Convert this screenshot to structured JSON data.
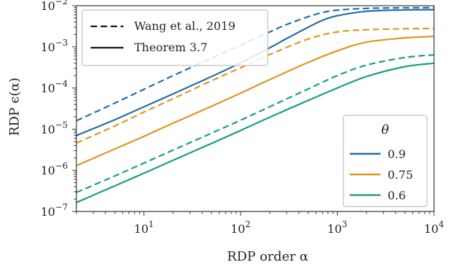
{
  "chart_data": {
    "type": "line",
    "xlabel": "RDP order α",
    "ylabel": "RDP ϵ(α)",
    "xscale": "log",
    "yscale": "log",
    "xlim": [
      2,
      10000
    ],
    "ylim": [
      1e-07,
      0.01
    ],
    "grid": false,
    "x_ticks": [
      {
        "value": 10,
        "base": "10",
        "exp": "1"
      },
      {
        "value": 100,
        "base": "10",
        "exp": "2"
      },
      {
        "value": 1000,
        "base": "10",
        "exp": "3"
      },
      {
        "value": 10000,
        "base": "10",
        "exp": "4"
      }
    ],
    "y_ticks": [
      {
        "value": 1e-07,
        "base": "10",
        "exp": "−7"
      },
      {
        "value": 1e-06,
        "base": "10",
        "exp": "−6"
      },
      {
        "value": 1e-05,
        "base": "10",
        "exp": "−5"
      },
      {
        "value": 0.0001,
        "base": "10",
        "exp": "−4"
      },
      {
        "value": 0.001,
        "base": "10",
        "exp": "−3"
      },
      {
        "value": 0.01,
        "base": "10",
        "exp": "−2"
      }
    ],
    "style_legend": {
      "placement": "top-left",
      "entries": [
        {
          "label": "Wang et al., 2019",
          "dash": "dashed"
        },
        {
          "label": "Theorem 3.7",
          "dash": "solid"
        }
      ]
    },
    "theta_legend": {
      "placement": "bottom-right",
      "title": "θ",
      "entries": [
        {
          "label": "0.9",
          "color": "#1f6ea8"
        },
        {
          "label": "0.75",
          "color": "#de9619"
        },
        {
          "label": "0.6",
          "color": "#17a07a"
        }
      ]
    },
    "series": [
      {
        "theta": "0.9",
        "method": "Wang et al., 2019",
        "dash": "dashed",
        "color": "#1f6ea8",
        "x": [
          2,
          5,
          10,
          20,
          50,
          100,
          200,
          300,
          500,
          700,
          1000,
          2000,
          5000,
          10000
        ],
        "y": [
          1.6e-05,
          4.3e-05,
          9.3e-05,
          0.0002,
          0.00053,
          0.0011,
          0.0023,
          0.0035,
          0.0054,
          0.0068,
          0.0078,
          0.0086,
          0.0089,
          0.009
        ]
      },
      {
        "theta": "0.9",
        "method": "Theorem 3.7",
        "dash": "solid",
        "color": "#1f6ea8",
        "x": [
          2,
          5,
          10,
          20,
          50,
          100,
          200,
          300,
          500,
          700,
          1000,
          2000,
          5000,
          10000
        ],
        "y": [
          7e-06,
          1.7e-05,
          3.5e-05,
          7.2e-05,
          0.00019,
          0.00041,
          0.00095,
          0.0016,
          0.003,
          0.0044,
          0.0057,
          0.0073,
          0.0079,
          0.008
        ]
      },
      {
        "theta": "0.75",
        "method": "Wang et al., 2019",
        "dash": "dashed",
        "color": "#de9619",
        "x": [
          2,
          5,
          10,
          20,
          50,
          100,
          200,
          500,
          1000,
          2000,
          5000,
          10000
        ],
        "y": [
          4.6e-06,
          1.2e-05,
          2.6e-05,
          5.5e-05,
          0.00015,
          0.00031,
          0.00065,
          0.00155,
          0.0023,
          0.0026,
          0.00275,
          0.0028
        ]
      },
      {
        "theta": "0.75",
        "method": "Theorem 3.7",
        "dash": "solid",
        "color": "#de9619",
        "x": [
          2,
          5,
          10,
          20,
          50,
          100,
          200,
          500,
          1000,
          2000,
          5000,
          10000
        ],
        "y": [
          1.3e-06,
          3.3e-06,
          6.7e-06,
          1.4e-05,
          3.6e-05,
          7.5e-05,
          0.00016,
          0.00042,
          0.0008,
          0.0013,
          0.00165,
          0.0018
        ]
      },
      {
        "theta": "0.6",
        "method": "Wang et al., 2019",
        "dash": "dashed",
        "color": "#17a07a",
        "x": [
          2,
          5,
          10,
          20,
          50,
          100,
          200,
          500,
          1000,
          2000,
          5000,
          10000
        ],
        "y": [
          2.9e-07,
          7.3e-07,
          1.5e-06,
          3.1e-06,
          8e-06,
          1.65e-05,
          3.5e-05,
          9.5e-05,
          0.0002,
          0.00036,
          0.00055,
          0.00064
        ]
      },
      {
        "theta": "0.6",
        "method": "Theorem 3.7",
        "dash": "solid",
        "color": "#17a07a",
        "x": [
          2,
          5,
          10,
          20,
          50,
          100,
          200,
          500,
          1000,
          2000,
          5000,
          10000
        ],
        "y": [
          1.65e-07,
          4.2e-07,
          8.5e-07,
          1.75e-06,
          4.5e-06,
          9.3e-06,
          1.95e-05,
          5e-05,
          0.0001,
          0.00019,
          0.00033,
          0.0004
        ]
      }
    ]
  }
}
